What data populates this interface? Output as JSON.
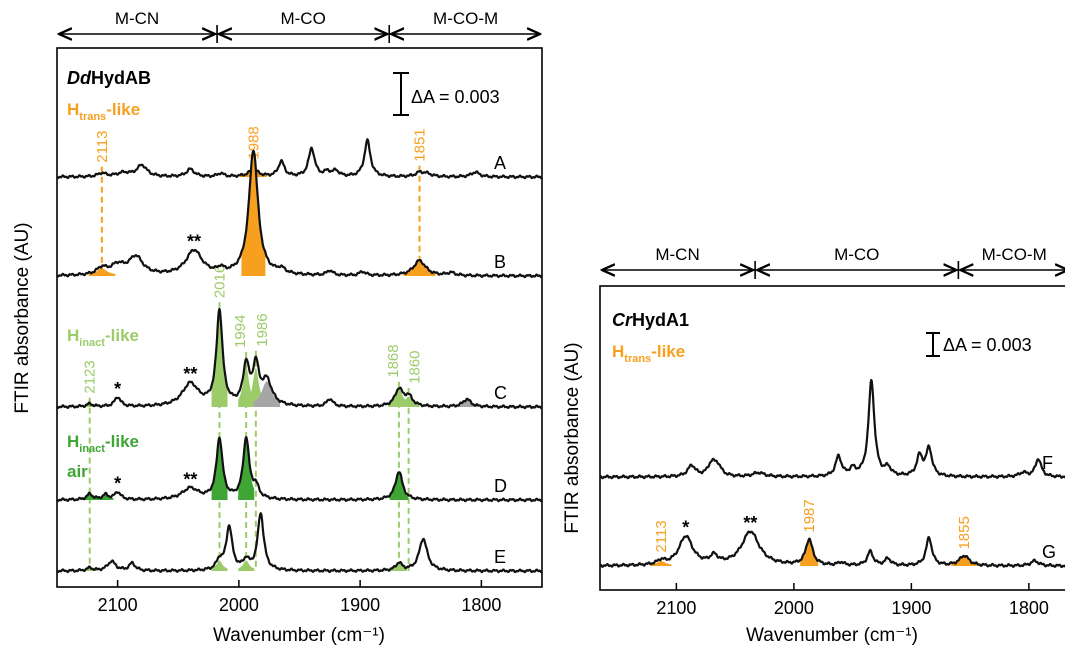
{
  "colors": {
    "orange": "#F7A01F",
    "light_green": "#9CCB6A",
    "dark_green": "#3FA535",
    "gray": "#A6A6A6",
    "trace": "#111111"
  },
  "chart_data": [
    {
      "type": "line",
      "title": "DdHydAB",
      "title_italic": "Dd",
      "title_rest": "HydAB",
      "xlabel": "Wavenumber (cm⁻¹)",
      "ylabel": "FTIR absorbance (AU)",
      "xlim": [
        2150,
        1750
      ],
      "x_reversed": true,
      "xticks": [
        2100,
        2000,
        1900,
        1800
      ],
      "scale_bar": "ΔA = 0.003",
      "regions": [
        {
          "label": "M-CN",
          "from": 2150,
          "to": 2018
        },
        {
          "label": "M-CO",
          "from": 2018,
          "to": 1876
        },
        {
          "label": "M-CO-M",
          "from": 1876,
          "to": 1750
        }
      ],
      "state_labels": [
        {
          "main": "H",
          "sub": "trans",
          "suffix": "-like",
          "extra": "",
          "color": "orange"
        },
        {
          "main": "H",
          "sub": "inact",
          "suffix": "-like",
          "extra": "",
          "color": "light_green"
        },
        {
          "main": "H",
          "sub": "inact",
          "suffix": "-like",
          "extra": "air",
          "color": "dark_green"
        }
      ],
      "series": [
        {
          "name": "A",
          "peaks": [
            {
              "x": 2113,
              "h": 0.18,
              "w": 4
            },
            {
              "x": 2095,
              "h": 0.2,
              "w": 7
            },
            {
              "x": 2080,
              "h": 0.6,
              "w": 5
            },
            {
              "x": 2040,
              "h": 0.4,
              "w": 4
            },
            {
              "x": 2015,
              "h": 0.18,
              "w": 3
            },
            {
              "x": 1988,
              "h": 0.36,
              "w": 5,
              "fill": "orange"
            },
            {
              "x": 1965,
              "h": 0.8,
              "w": 3
            },
            {
              "x": 1940,
              "h": 1.5,
              "w": 3
            },
            {
              "x": 1927,
              "h": 0.25,
              "w": 3
            },
            {
              "x": 1920,
              "h": 0.3,
              "w": 3
            },
            {
              "x": 1894,
              "h": 1.9,
              "w": 3
            },
            {
              "x": 1851,
              "h": 0.2,
              "w": 4
            },
            {
              "x": 1845,
              "h": 0.15,
              "w": 5
            },
            {
              "x": 1805,
              "h": 0.25,
              "w": 4
            }
          ]
        },
        {
          "name": "B",
          "peaks": [
            {
              "x": 2113,
              "h": 0.35,
              "w": 5,
              "fill": "orange"
            },
            {
              "x": 2100,
              "h": 0.5,
              "w": 7
            },
            {
              "x": 2085,
              "h": 0.95,
              "w": 7
            },
            {
              "x": 2037,
              "h": 1.3,
              "w": 8
            },
            {
              "x": 2015,
              "h": 0.25,
              "w": 3
            },
            {
              "x": 1988,
              "h": 6.6,
              "w": 4.5,
              "fill": "orange"
            },
            {
              "x": 1965,
              "h": 0.25,
              "w": 4
            },
            {
              "x": 1925,
              "h": 0.25,
              "w": 3
            },
            {
              "x": 1898,
              "h": 0.2,
              "w": 3
            },
            {
              "x": 1851,
              "h": 0.8,
              "w": 6,
              "fill": "orange"
            },
            {
              "x": 1825,
              "h": 0.15,
              "w": 4
            }
          ]
        },
        {
          "name": "C",
          "peaks": [
            {
              "x": 2123,
              "h": 0.15,
              "w": 3,
              "fill": "light_green"
            },
            {
              "x": 2100,
              "h": 0.5,
              "w": 3
            },
            {
              "x": 2040,
              "h": 1.2,
              "w": 8
            },
            {
              "x": 2016,
              "h": 5.0,
              "w": 3,
              "fill": "light_green"
            },
            {
              "x": 1994,
              "h": 2.1,
              "w": 3,
              "fill": "light_green"
            },
            {
              "x": 1986,
              "h": 2.0,
              "w": 3,
              "fill": "light_green"
            },
            {
              "x": 1977,
              "h": 1.3,
              "w": 5,
              "fill": "gray"
            },
            {
              "x": 1925,
              "h": 0.4,
              "w": 3
            },
            {
              "x": 1868,
              "h": 0.9,
              "w": 4,
              "fill": "light_green"
            },
            {
              "x": 1860,
              "h": 0.5,
              "w": 4,
              "fill": "light_green"
            },
            {
              "x": 1812,
              "h": 0.4,
              "w": 4,
              "fill": "gray"
            }
          ]
        },
        {
          "name": "D",
          "peaks": [
            {
              "x": 2123,
              "h": 0.3,
              "w": 3,
              "fill": "dark_green"
            },
            {
              "x": 2110,
              "h": 0.25,
              "w": 3,
              "fill": "dark_green"
            },
            {
              "x": 2100,
              "h": 0.4,
              "w": 3
            },
            {
              "x": 2040,
              "h": 0.6,
              "w": 8
            },
            {
              "x": 2016,
              "h": 3.2,
              "w": 3,
              "fill": "dark_green"
            },
            {
              "x": 1994,
              "h": 3.2,
              "w": 3,
              "fill": "dark_green"
            },
            {
              "x": 1986,
              "h": 0.6,
              "w": 3
            },
            {
              "x": 1868,
              "h": 1.5,
              "w": 3.5,
              "fill": "dark_green"
            }
          ]
        },
        {
          "name": "E",
          "peaks": [
            {
              "x": 2123,
              "h": 0.15,
              "w": 3,
              "fill": "light_green"
            },
            {
              "x": 2105,
              "h": 0.5,
              "w": 4
            },
            {
              "x": 2088,
              "h": 0.4,
              "w": 3
            },
            {
              "x": 2016,
              "h": 0.5,
              "w": 3,
              "fill": "light_green"
            },
            {
              "x": 2008,
              "h": 2.3,
              "w": 3
            },
            {
              "x": 1994,
              "h": 0.5,
              "w": 3,
              "fill": "light_green"
            },
            {
              "x": 1982,
              "h": 3.0,
              "w": 3
            },
            {
              "x": 1868,
              "h": 0.4,
              "w": 3,
              "fill": "light_green"
            },
            {
              "x": 1848,
              "h": 1.7,
              "w": 4
            }
          ]
        }
      ],
      "markers": [
        {
          "x": 2113,
          "label": "2113",
          "color": "orange",
          "top_series": "A",
          "bottom_series": "B"
        },
        {
          "x": 1988,
          "label": "1988",
          "color": "orange",
          "top_series": "A",
          "bottom_series": "B"
        },
        {
          "x": 1851,
          "label": "1851",
          "color": "orange",
          "top_series": "A",
          "bottom_series": "B"
        },
        {
          "x": 2123,
          "label": "2123",
          "color": "light_green",
          "top_series": "C",
          "bottom_series": "E"
        },
        {
          "x": 2016,
          "label": "2016",
          "color": "light_green",
          "top_series": "C",
          "bottom_series": "E"
        },
        {
          "x": 1994,
          "label": "1994",
          "color": "light_green",
          "top_series": "C",
          "bottom_series": "E"
        },
        {
          "x": 1986,
          "label": "1986",
          "color": "light_green",
          "top_series": "C",
          "bottom_series": "E"
        },
        {
          "x": 1868,
          "label": "1868",
          "color": "light_green",
          "top_series": "C",
          "bottom_series": "E"
        },
        {
          "x": 1860,
          "label": "1860",
          "color": "light_green",
          "top_series": "C",
          "bottom_series": "E"
        }
      ],
      "annotations": [
        {
          "series": "B",
          "x": 2037,
          "text": "**"
        },
        {
          "series": "C",
          "x": 2100,
          "text": "*"
        },
        {
          "series": "C",
          "x": 2040,
          "text": "**"
        },
        {
          "series": "D",
          "x": 2100,
          "text": "*"
        },
        {
          "series": "D",
          "x": 2040,
          "text": "**"
        }
      ]
    },
    {
      "type": "line",
      "title": "CrHydA1",
      "title_italic": "Cr",
      "title_rest": "HydA1",
      "xlabel": "Wavenumber (cm⁻¹)",
      "ylabel": "FTIR absorbance (AU)",
      "xlim": [
        2165,
        1765
      ],
      "x_reversed": true,
      "xticks": [
        2100,
        2000,
        1900,
        1800
      ],
      "scale_bar": "ΔA = 0.003",
      "regions": [
        {
          "label": "M-CN",
          "from": 2165,
          "to": 2033
        },
        {
          "label": "M-CO",
          "from": 2033,
          "to": 1860
        },
        {
          "label": "M-CO-M",
          "from": 1860,
          "to": 1765
        }
      ],
      "state_labels": [
        {
          "main": "H",
          "sub": "trans",
          "suffix": "-like",
          "extra": "",
          "color": "orange"
        }
      ],
      "series": [
        {
          "name": "F",
          "peaks": [
            {
              "x": 2087,
              "h": 0.55,
              "w": 4
            },
            {
              "x": 2070,
              "h": 0.6,
              "w": 4
            },
            {
              "x": 2065,
              "h": 0.5,
              "w": 4
            },
            {
              "x": 2030,
              "h": 0.2,
              "w": 6
            },
            {
              "x": 1962,
              "h": 1.0,
              "w": 3
            },
            {
              "x": 1950,
              "h": 0.35,
              "w": 3
            },
            {
              "x": 1934,
              "h": 4.8,
              "w": 3
            },
            {
              "x": 1920,
              "h": 0.4,
              "w": 3
            },
            {
              "x": 1893,
              "h": 1.0,
              "w": 3
            },
            {
              "x": 1885,
              "h": 1.4,
              "w": 3
            },
            {
              "x": 1805,
              "h": 0.2,
              "w": 4
            },
            {
              "x": 1792,
              "h": 0.9,
              "w": 3
            }
          ]
        },
        {
          "name": "G",
          "peaks": [
            {
              "x": 2113,
              "h": 0.2,
              "w": 4,
              "fill": "orange"
            },
            {
              "x": 2092,
              "h": 1.45,
              "w": 7
            },
            {
              "x": 2068,
              "h": 0.4,
              "w": 4
            },
            {
              "x": 2037,
              "h": 1.7,
              "w": 9
            },
            {
              "x": 1987,
              "h": 1.3,
              "w": 3.5,
              "fill": "orange"
            },
            {
              "x": 1960,
              "h": 0.15,
              "w": 3
            },
            {
              "x": 1935,
              "h": 0.7,
              "w": 3
            },
            {
              "x": 1920,
              "h": 0.35,
              "w": 3
            },
            {
              "x": 1885,
              "h": 1.4,
              "w": 3
            },
            {
              "x": 1855,
              "h": 0.5,
              "w": 5,
              "fill": "orange"
            },
            {
              "x": 1795,
              "h": 0.25,
              "w": 4
            }
          ]
        }
      ],
      "markers": [],
      "peak_labels": [
        {
          "series": "G",
          "x": 2113,
          "label": "2113",
          "color": "orange"
        },
        {
          "series": "G",
          "x": 1987,
          "label": "1987",
          "color": "orange"
        },
        {
          "series": "G",
          "x": 1855,
          "label": "1855",
          "color": "orange"
        }
      ],
      "annotations": [
        {
          "series": "G",
          "x": 2092,
          "text": "*"
        },
        {
          "series": "G",
          "x": 2037,
          "text": "**"
        }
      ]
    }
  ]
}
